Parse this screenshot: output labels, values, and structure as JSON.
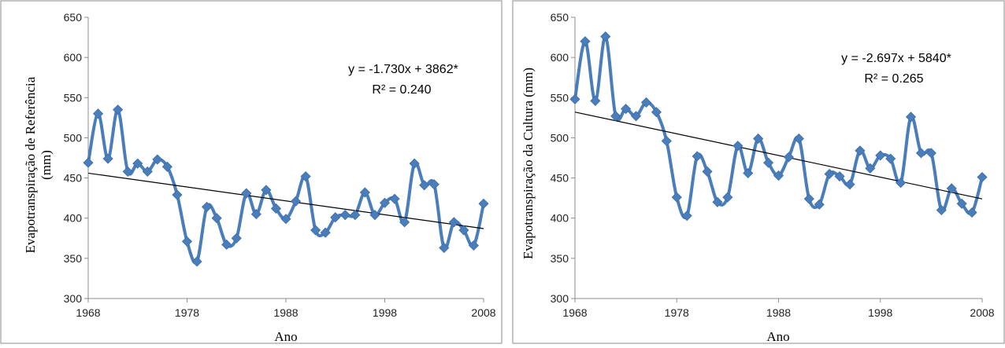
{
  "chart_data": [
    {
      "type": "line",
      "xlabel": "Ano",
      "ylabel": "Evapotranspiração de Referência (mm)",
      "ylabel_lines": [
        "Evapotranspiração de Referência",
        "(mm)"
      ],
      "xlim": [
        1968,
        2008
      ],
      "ylim": [
        300,
        650
      ],
      "xticks": [
        1968,
        1978,
        1988,
        1998,
        2008
      ],
      "yticks": [
        300,
        350,
        400,
        450,
        500,
        550,
        600,
        650
      ],
      "grid": false,
      "series_color": "#4a7ebb",
      "trend_color": "#000000",
      "x": [
        1968,
        1969,
        1970,
        1971,
        1972,
        1973,
        1974,
        1975,
        1976,
        1977,
        1978,
        1979,
        1980,
        1981,
        1982,
        1983,
        1984,
        1985,
        1986,
        1987,
        1988,
        1989,
        1990,
        1991,
        1992,
        1993,
        1994,
        1995,
        1996,
        1997,
        1998,
        1999,
        2000,
        2001,
        2002,
        2003,
        2004,
        2005,
        2006,
        2007,
        2008
      ],
      "values": [
        469,
        530,
        474,
        535,
        458,
        468,
        458,
        473,
        464,
        429,
        371,
        346,
        414,
        400,
        367,
        375,
        431,
        405,
        435,
        412,
        399,
        421,
        452,
        385,
        382,
        401,
        404,
        404,
        432,
        404,
        419,
        424,
        395,
        468,
        441,
        442,
        363,
        395,
        385,
        366,
        418
      ],
      "trendline": {
        "start": [
          1968,
          456
        ],
        "end": [
          2008,
          387
        ]
      },
      "equation": "y = -1.730x + 3862*",
      "r_squared": "R² = 0.240"
    },
    {
      "type": "line",
      "xlabel": "Ano",
      "ylabel": "Evapotranspiração da Cultura (mm)",
      "ylabel_lines": [
        "Evapotranspiração da Cultura (mm)"
      ],
      "xlim": [
        1968,
        2008
      ],
      "ylim": [
        300,
        650
      ],
      "xticks": [
        1968,
        1978,
        1988,
        1998,
        2008
      ],
      "yticks": [
        300,
        350,
        400,
        450,
        500,
        550,
        600,
        650
      ],
      "grid": false,
      "series_color": "#4a7ebb",
      "trend_color": "#000000",
      "x": [
        1968,
        1969,
        1970,
        1971,
        1972,
        1973,
        1974,
        1975,
        1976,
        1977,
        1978,
        1979,
        1980,
        1981,
        1982,
        1983,
        1984,
        1985,
        1986,
        1987,
        1988,
        1989,
        1990,
        1991,
        1992,
        1993,
        1994,
        1995,
        1996,
        1997,
        1998,
        1999,
        2000,
        2001,
        2002,
        2003,
        2004,
        2005,
        2006,
        2007,
        2008
      ],
      "values": [
        548,
        620,
        546,
        626,
        527,
        536,
        527,
        544,
        532,
        496,
        426,
        403,
        477,
        458,
        420,
        426,
        490,
        456,
        499,
        469,
        453,
        476,
        499,
        424,
        417,
        455,
        452,
        442,
        484,
        462,
        478,
        474,
        444,
        526,
        481,
        481,
        410,
        437,
        418,
        407,
        451
      ],
      "trendline": {
        "start": [
          1968,
          532
        ],
        "end": [
          2008,
          424
        ]
      },
      "equation": "y = -2.697x + 5840*",
      "r_squared": "R² = 0.265"
    }
  ]
}
